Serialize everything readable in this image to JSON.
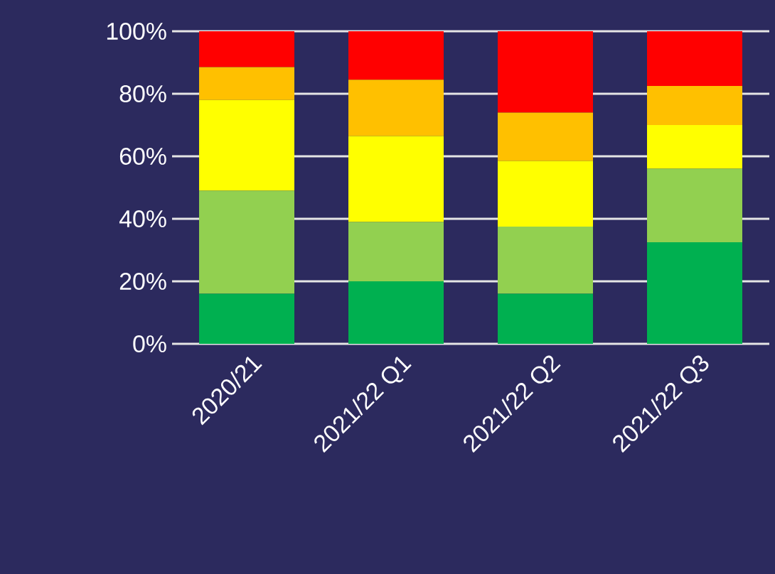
{
  "chart_data": {
    "type": "bar",
    "stacked": true,
    "categories": [
      "2020/21",
      "2021/22 Q1",
      "2021/22 Q2",
      "2021/22 Q3"
    ],
    "series": [
      {
        "color": "#00b050",
        "values": [
          16,
          20,
          16,
          32.5
        ]
      },
      {
        "color": "#92d050",
        "values": [
          33,
          19,
          21.5,
          23.5
        ]
      },
      {
        "color": "#ffff00",
        "values": [
          29,
          27.5,
          21,
          14
        ]
      },
      {
        "color": "#ffc000",
        "values": [
          10.5,
          18,
          15.5,
          12.5
        ]
      },
      {
        "color": "#ff0000",
        "values": [
          11.5,
          15.5,
          26,
          17.5
        ]
      }
    ],
    "ylim": [
      0,
      100
    ],
    "yticks": [
      {
        "value": 0,
        "label": "0%"
      },
      {
        "value": 20,
        "label": "20%"
      },
      {
        "value": 40,
        "label": "40%"
      },
      {
        "value": 60,
        "label": "60%"
      },
      {
        "value": 80,
        "label": "80%"
      },
      {
        "value": 100,
        "label": "100%"
      }
    ],
    "grid": "y"
  }
}
